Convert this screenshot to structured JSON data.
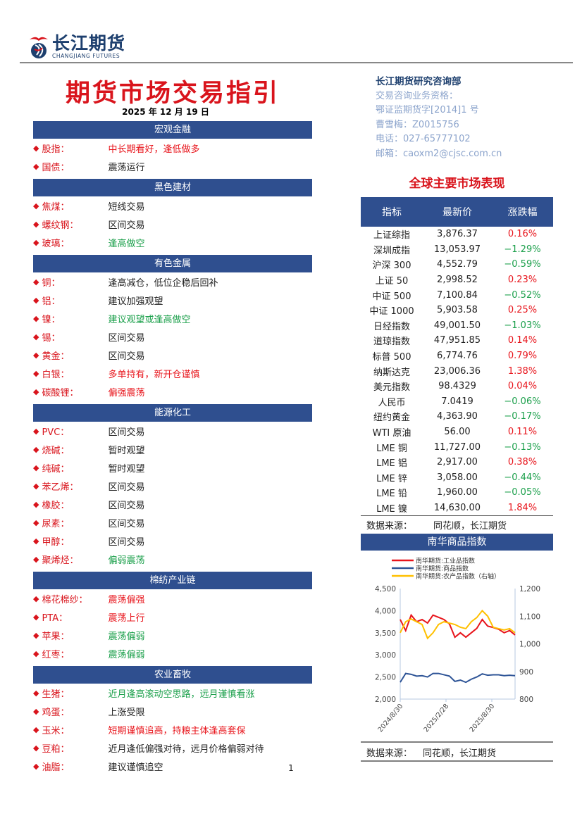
{
  "header": {
    "logo_cn": "长江期货",
    "logo_en": "CHANGJIANG FUTURES",
    "title": "期货市场交易指引",
    "date": "2025 年 12 月 19 日"
  },
  "department": {
    "name": "长江期货研究咨询部",
    "lines": [
      "交易咨询业务资格：",
      "鄂证监期货字[2014]1 号",
      "曹雪梅：Z0015756",
      "电话：027-65777102",
      "邮箱：caoxm2@cjsc.com.cn"
    ]
  },
  "colors": {
    "section_bg": "#2f4f8f",
    "red": "#e8141b",
    "green": "#1a9f4a"
  },
  "sections": [
    {
      "title": "宏观金融",
      "items": [
        {
          "label": "股指：",
          "advice": "中长期看好，逢低做多",
          "tone": "red"
        },
        {
          "label": "国债：",
          "advice": "震荡运行",
          "tone": "black"
        }
      ]
    },
    {
      "title": "黑色建材",
      "items": [
        {
          "label": "焦煤：",
          "advice": "短线交易",
          "tone": "black"
        },
        {
          "label": "螺纹钢：",
          "advice": "区间交易",
          "tone": "black"
        },
        {
          "label": "玻璃：",
          "advice": "逢高做空",
          "tone": "green"
        }
      ]
    },
    {
      "title": "有色金属",
      "items": [
        {
          "label": "铜：",
          "advice": "逢高减仓，低位企稳后回补",
          "tone": "black"
        },
        {
          "label": "铝：",
          "advice": "建议加强观望",
          "tone": "black"
        },
        {
          "label": "镍：",
          "advice": "建议观望或逢高做空",
          "tone": "green"
        },
        {
          "label": "锡：",
          "advice": "区间交易",
          "tone": "black"
        },
        {
          "label": "黄金：",
          "advice": "区间交易",
          "tone": "black"
        },
        {
          "label": "白银：",
          "advice": "多单持有，新开仓谨慎",
          "tone": "red"
        },
        {
          "label": "碳酸锂：",
          "advice": "偏强震荡",
          "tone": "red"
        }
      ]
    },
    {
      "title": "能源化工",
      "items": [
        {
          "label": "PVC：",
          "advice": "区间交易",
          "tone": "black"
        },
        {
          "label": "烧碱：",
          "advice": "暂时观望",
          "tone": "black"
        },
        {
          "label": "纯碱：",
          "advice": "暂时观望",
          "tone": "black"
        },
        {
          "label": "苯乙烯：",
          "advice": "区间交易",
          "tone": "black"
        },
        {
          "label": "橡胶：",
          "advice": "区间交易",
          "tone": "black"
        },
        {
          "label": "尿素：",
          "advice": "区间交易",
          "tone": "black"
        },
        {
          "label": "甲醇：",
          "advice": "区间交易",
          "tone": "black"
        },
        {
          "label": "聚烯烃：",
          "advice": "偏弱震荡",
          "tone": "green"
        }
      ]
    },
    {
      "title": "棉纺产业链",
      "items": [
        {
          "label": "棉花棉纱：",
          "advice": "震荡偏强",
          "tone": "red"
        },
        {
          "label": "PTA：",
          "advice": "震荡上行",
          "tone": "red"
        },
        {
          "label": "苹果：",
          "advice": "震荡偏弱",
          "tone": "green"
        },
        {
          "label": "红枣：",
          "advice": "震荡偏弱",
          "tone": "green"
        }
      ]
    },
    {
      "title": "农业畜牧",
      "items": [
        {
          "label": "生猪：",
          "advice": "近月逢高滚动空思路，远月谨慎看涨",
          "tone": "green"
        },
        {
          "label": "鸡蛋：",
          "advice": "上涨受限",
          "tone": "black"
        },
        {
          "label": "玉米：",
          "advice": "短期谨慎追高，持粮主体逢高套保",
          "tone": "red"
        },
        {
          "label": "豆粕：",
          "advice": "近月逢低偏强对待，远月价格偏弱对待",
          "tone": "black"
        },
        {
          "label": "油脂：",
          "advice": "建议谨慎追空",
          "tone": "black"
        }
      ]
    }
  ],
  "market": {
    "title": "全球主要市场表现",
    "headers": [
      "指标",
      "最新价",
      "涨跌幅"
    ],
    "rows": [
      [
        "上证综指",
        "3,876.37",
        "0.16%"
      ],
      [
        "深圳成指",
        "13,053.97",
        "−1.29%"
      ],
      [
        "沪深 300",
        "4,552.79",
        "−0.59%"
      ],
      [
        "上证 50",
        "2,998.52",
        "0.23%"
      ],
      [
        "中证 500",
        "7,100.84",
        "−0.52%"
      ],
      [
        "中证 1000",
        "5,903.58",
        "0.25%"
      ],
      [
        "日经指数",
        "49,001.50",
        "−1.03%"
      ],
      [
        "道琼指数",
        "47,951.85",
        "0.14%"
      ],
      [
        "标普 500",
        "6,774.76",
        "0.79%"
      ],
      [
        "纳斯达克",
        "23,006.36",
        "1.38%"
      ],
      [
        "美元指数",
        "98.4329",
        "0.04%"
      ],
      [
        "人民币",
        "7.0419",
        "−0.06%"
      ],
      [
        "纽约黄金",
        "4,363.90",
        "−0.17%"
      ],
      [
        "WTI 原油",
        "56.00",
        "0.11%"
      ],
      [
        "LME 铜",
        "11,727.00",
        "−0.13%"
      ],
      [
        "LME 铝",
        "2,917.00",
        "0.38%"
      ],
      [
        "LME 锌",
        "3,058.00",
        "−0.44%"
      ],
      [
        "LME 铅",
        "1,960.00",
        "−0.05%"
      ],
      [
        "LME 镍",
        "14,630.00",
        "1.84%"
      ]
    ],
    "source_label": "数据来源：",
    "source": "同花顺，长江期货"
  },
  "chart_data": {
    "type": "line",
    "title": "南华商品指数",
    "x_ticks": [
      "2024/8/30",
      "2025/2/28",
      "2025/8/30"
    ],
    "ylim_left": [
      2000,
      4500
    ],
    "yticks_left": [
      "2,000",
      "2,500",
      "3,000",
      "3,500",
      "4,000",
      "4,500"
    ],
    "ylim_right": [
      800,
      1200
    ],
    "yticks_right": [
      "800",
      "900",
      "1,000",
      "1,100",
      "1,200"
    ],
    "legend_placement": "top",
    "series": [
      {
        "name": "南华期货:工业品指数",
        "axis": "left",
        "color": "#e8141b",
        "values": [
          3800,
          3550,
          3900,
          3750,
          3800,
          3720,
          3900,
          3850,
          3800,
          3700,
          3400,
          3500,
          3400,
          3500,
          3600,
          3800,
          3650,
          3620,
          3580,
          3500,
          3550,
          3450
        ]
      },
      {
        "name": "南华期货:商品指数",
        "axis": "left",
        "color": "#2f5597",
        "values": [
          2380,
          2580,
          2560,
          2520,
          2530,
          2500,
          2580,
          2580,
          2550,
          2520,
          2400,
          2430,
          2380,
          2450,
          2500,
          2570,
          2540,
          2550,
          2550,
          2530,
          2540,
          2530
        ]
      },
      {
        "name": "南华期货:农产品指数（右轴）",
        "axis": "right",
        "color": "#ffc000",
        "values": [
          1040,
          1080,
          1090,
          1080,
          1070,
          1020,
          1040,
          1070,
          1080,
          1075,
          1070,
          1060,
          1055,
          1080,
          1095,
          1120,
          1100,
          1060,
          1055,
          1050,
          1055,
          1040
        ]
      }
    ],
    "source_label": "数据来源：",
    "source": "同花顺，长江期货"
  },
  "page_number": "1"
}
